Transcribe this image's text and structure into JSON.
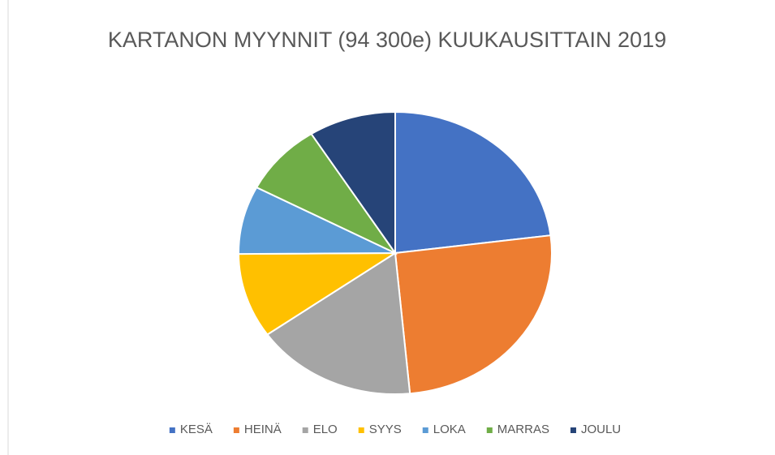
{
  "chart_data": {
    "type": "pie",
    "title": "KARTANON MYYNNIT (94 300e) KUUKAUSITTAIN 2019",
    "categories": [
      "KESÄ",
      "HEINÄ",
      "ELO",
      "SYYS",
      "LOKA",
      "MARRAS",
      "JOULU"
    ],
    "values": [
      23,
      25.5,
      16.7,
      9.7,
      7.8,
      8.3,
      9
    ],
    "colors": [
      "#4472c4",
      "#ed7d31",
      "#a5a5a5",
      "#ffc000",
      "#5b9bd5",
      "#70ad47",
      "#264478"
    ],
    "legend": "bottom"
  }
}
